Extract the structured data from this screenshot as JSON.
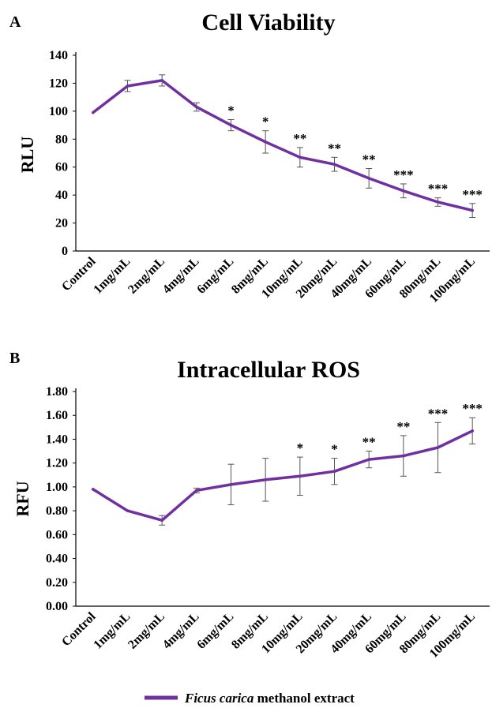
{
  "colors": {
    "series": "#7030A0",
    "axis": "#000000",
    "errorbar": "#555555"
  },
  "legend": {
    "label_italic": "Ficus carica",
    "label_rest": " methanol extract",
    "placement": "bottom-center"
  },
  "chart_data": [
    {
      "type": "line",
      "panel": "A",
      "title": "Cell Viability",
      "ylabel": "RLU",
      "xlabel": "",
      "ylim": [
        0,
        140
      ],
      "yticks": [
        "0",
        "20",
        "40",
        "60",
        "80",
        "100",
        "120",
        "140"
      ],
      "categories": [
        "Control",
        "1mg/mL",
        "2mg/mL",
        "4mg/mL",
        "6mg/mL",
        "8mg/mL",
        "10mg/mL",
        "20mg/mL",
        "40mg/mL",
        "60mg/mL",
        "80mg/mL",
        "100mg/mL"
      ],
      "values": [
        99,
        118,
        122,
        103,
        90,
        78,
        67,
        62,
        52,
        43,
        35,
        29
      ],
      "errors": [
        0,
        4,
        4,
        3,
        4,
        8,
        7,
        5,
        7,
        5,
        3,
        5
      ],
      "significance": [
        "",
        "",
        "",
        "",
        "*",
        "*",
        "**",
        "**",
        "**",
        "***",
        "***",
        "***"
      ],
      "grid": false
    },
    {
      "type": "line",
      "panel": "B",
      "title": "Intracellular ROS",
      "ylabel": "RFU",
      "xlabel": "",
      "ylim": [
        0,
        1.8
      ],
      "yticks": [
        "0.00",
        "0.20",
        "0.40",
        "0.60",
        "0.80",
        "1.00",
        "1.20",
        "1.40",
        "1.60",
        "1.80"
      ],
      "categories": [
        "Control",
        "1mg/mL",
        "2mg/mL",
        "4mg/mL",
        "6mg/mL",
        "8mg/mL",
        "10mg/mL",
        "20mg/mL",
        "40mg/mL",
        "60mg/mL",
        "80mg/mL",
        "100mg/mL"
      ],
      "values": [
        0.98,
        0.8,
        0.72,
        0.97,
        1.02,
        1.06,
        1.09,
        1.13,
        1.23,
        1.26,
        1.33,
        1.47
      ],
      "errors": [
        0,
        0,
        0.04,
        0.02,
        0.17,
        0.18,
        0.16,
        0.11,
        0.07,
        0.17,
        0.21,
        0.11
      ],
      "significance": [
        "",
        "",
        "",
        "",
        "",
        "",
        "*",
        "*",
        "**",
        "**",
        "***",
        "***"
      ],
      "grid": false
    }
  ]
}
